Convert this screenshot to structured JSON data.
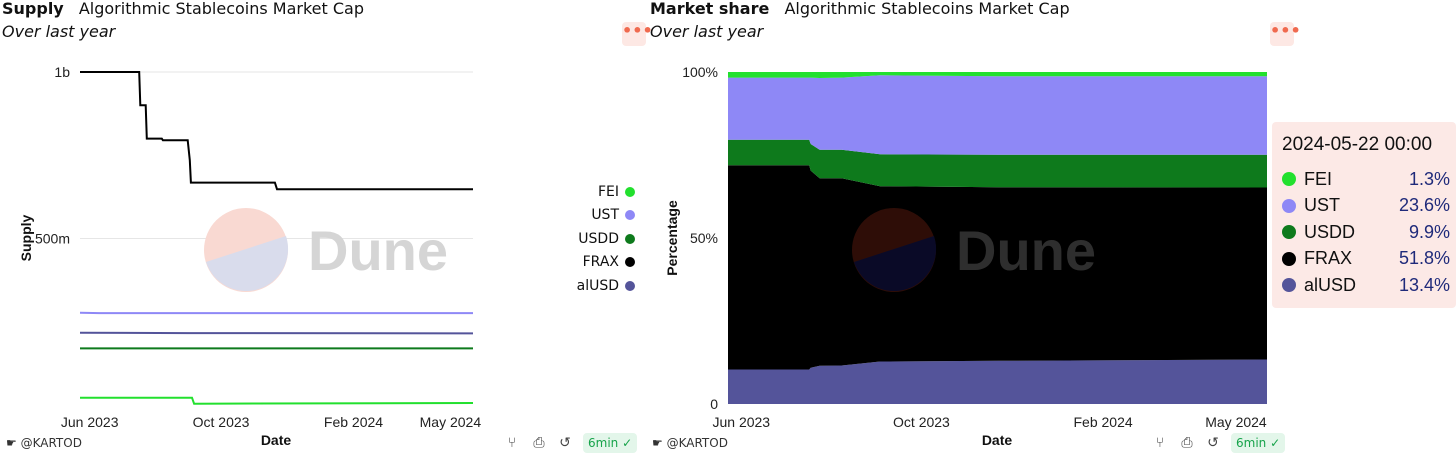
{
  "brand_watermark": "Dune",
  "author": "@KARTOD",
  "refresh_age": "6min",
  "menu_glyph": "•••",
  "left": {
    "title": "Supply",
    "subtitle": "Algorithmic Stablecoins Market Cap",
    "period": "Over last year"
  },
  "right": {
    "title": "Market share",
    "subtitle": "Algorithmic Stablecoins Market Cap",
    "period": "Over last year"
  },
  "legend": [
    {
      "name": "FEI",
      "color": "#22e02e"
    },
    {
      "name": "UST",
      "color": "#8e88f6"
    },
    {
      "name": "USDD",
      "color": "#0e7a1c"
    },
    {
      "name": "FRAX",
      "color": "#000000"
    },
    {
      "name": "alUSD",
      "color": "#54549a"
    }
  ],
  "tooltip": {
    "date": "2024-05-22 00:00",
    "rows": [
      {
        "name": "FEI",
        "value": "1.3%",
        "color": "#22e02e"
      },
      {
        "name": "UST",
        "value": "23.6%",
        "color": "#8e88f6"
      },
      {
        "name": "USDD",
        "value": "9.9%",
        "color": "#0e7a1c"
      },
      {
        "name": "FRAX",
        "value": "51.8%",
        "color": "#000000"
      },
      {
        "name": "alUSD",
        "value": "13.4%",
        "color": "#54549a"
      }
    ]
  },
  "chart_data": [
    {
      "type": "line",
      "title": "Supply",
      "subtitle": "Algorithmic Stablecoins Market Cap",
      "xlabel": "Date",
      "ylabel": "Supply",
      "y_ticks": [
        {
          "value": 1000000000,
          "label": "1b"
        },
        {
          "value": 500000000,
          "label": "500m"
        }
      ],
      "x_ticks": [
        {
          "value": "2023-06-01",
          "label": "Jun 2023"
        },
        {
          "value": "2023-10-01",
          "label": "Oct 2023"
        },
        {
          "value": "2024-02-01",
          "label": "Feb 2024"
        },
        {
          "value": "2024-05-01",
          "label": "May 2024"
        }
      ],
      "xlim": [
        "2023-05-23",
        "2024-05-22"
      ],
      "ylim": [
        0,
        1000000000
      ],
      "grid": true,
      "legend": "right",
      "series": [
        {
          "name": "FRAX",
          "color": "#000000",
          "points": [
            [
              "2023-05-23",
              1000000000
            ],
            [
              "2023-07-17",
              1000000000
            ],
            [
              "2023-07-18",
              900000000
            ],
            [
              "2023-07-23",
              900000000
            ],
            [
              "2023-07-24",
              800000000
            ],
            [
              "2023-08-07",
              800000000
            ],
            [
              "2023-08-08",
              795000000
            ],
            [
              "2023-08-31",
              795000000
            ],
            [
              "2023-09-02",
              735000000
            ],
            [
              "2023-09-03",
              668000000
            ],
            [
              "2023-11-20",
              668000000
            ],
            [
              "2023-11-22",
              648000000
            ],
            [
              "2024-05-22",
              648000000
            ]
          ]
        },
        {
          "name": "UST",
          "color": "#8e88f6",
          "points": [
            [
              "2023-05-23",
              277000000
            ],
            [
              "2023-06-10",
              276000000
            ],
            [
              "2024-05-22",
              276000000
            ]
          ]
        },
        {
          "name": "alUSD",
          "color": "#54549a",
          "points": [
            [
              "2023-05-23",
              217000000
            ],
            [
              "2023-09-01",
              216000000
            ],
            [
              "2024-05-22",
              215000000
            ]
          ]
        },
        {
          "name": "USDD",
          "color": "#0e7a1c",
          "points": [
            [
              "2023-05-23",
              170000000
            ],
            [
              "2024-05-22",
              170000000
            ]
          ]
        },
        {
          "name": "FEI",
          "color": "#22e02e",
          "points": [
            [
              "2023-05-23",
              22000000
            ],
            [
              "2023-09-04",
              22000000
            ],
            [
              "2023-09-06",
              4000000
            ],
            [
              "2024-05-22",
              6000000
            ]
          ]
        }
      ]
    },
    {
      "type": "area",
      "stacked": "percent",
      "title": "Market share",
      "subtitle": "Algorithmic Stablecoins Market Cap",
      "xlabel": "Date",
      "ylabel": "Percentage",
      "y_ticks": [
        {
          "value": 0,
          "label": "0"
        },
        {
          "value": 50,
          "label": "50%"
        },
        {
          "value": 100,
          "label": "100%"
        }
      ],
      "x_ticks": [
        {
          "value": "2023-06-01",
          "label": "Jun 2023"
        },
        {
          "value": "2023-10-01",
          "label": "Oct 2023"
        },
        {
          "value": "2024-02-01",
          "label": "Feb 2024"
        },
        {
          "value": "2024-05-01",
          "label": "May 2024"
        }
      ],
      "xlim": [
        "2023-05-23",
        "2024-05-22"
      ],
      "ylim": [
        0,
        100
      ],
      "series_order_bottom_to_top": [
        "alUSD",
        "FRAX",
        "USDD",
        "UST",
        "FEI"
      ],
      "dates": [
        "2023-05-23",
        "2023-07-17",
        "2023-07-18",
        "2023-07-24",
        "2023-08-08",
        "2023-09-03",
        "2023-11-22",
        "2024-05-22"
      ],
      "series": [
        {
          "name": "alUSD",
          "color": "#54549a",
          "values": [
            10.4,
            10.4,
            10.9,
            11.5,
            11.6,
            12.8,
            13.0,
            13.4
          ]
        },
        {
          "name": "FRAX",
          "color": "#000000",
          "values": [
            61.5,
            61.5,
            59.4,
            56.5,
            56.4,
            52.8,
            52.3,
            51.8
          ]
        },
        {
          "name": "USDD",
          "color": "#0e7a1c",
          "values": [
            7.7,
            7.7,
            8.0,
            8.6,
            8.6,
            9.6,
            9.8,
            9.9
          ]
        },
        {
          "name": "UST",
          "color": "#8e88f6",
          "values": [
            18.7,
            18.7,
            20.0,
            21.6,
            21.7,
            23.8,
            23.6,
            23.6
          ]
        },
        {
          "name": "FEI",
          "color": "#22e02e",
          "values": [
            1.7,
            1.7,
            1.7,
            1.8,
            1.7,
            1.0,
            1.3,
            1.3
          ]
        }
      ]
    }
  ]
}
